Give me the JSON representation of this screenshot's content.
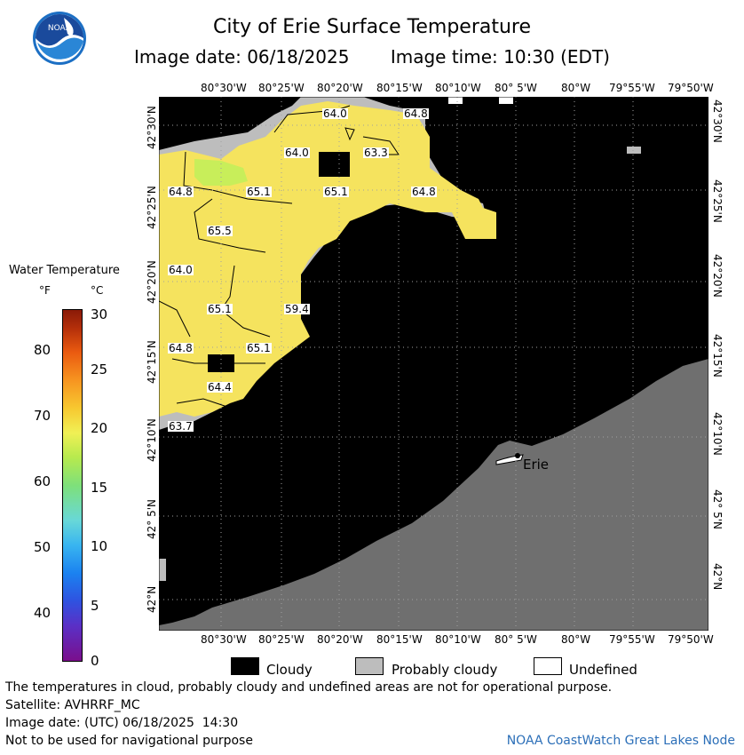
{
  "header": {
    "title": "City of Erie Surface Temperature",
    "image_date": "Image date: 06/18/2025",
    "image_time": "Image time: 10:30 (EDT)",
    "logo_text": "NOAA"
  },
  "map": {
    "x_ticks": [
      "80°30'W",
      "80°25'W",
      "80°20'W",
      "80°15'W",
      "80°10'W",
      "80° 5'W",
      "80°W",
      "79°55'W",
      "79°50'W"
    ],
    "y_ticks": [
      "42°30'N",
      "42°25'N",
      "42°20'N",
      "42°15'N",
      "42°10'N",
      "42° 5'N",
      "42°N"
    ],
    "city_label": "Erie",
    "contour_labels": [
      "64.0",
      "64.8",
      "64.0",
      "63.3",
      "64.8",
      "65.1",
      "65.1",
      "64.8",
      "65.5",
      "64.0",
      "65.1",
      "59.4",
      "64.8",
      "65.1",
      "64.4",
      "63.7"
    ],
    "colors": {
      "cloud": "#000000",
      "land": "#6f6f6f",
      "probably_cloudy": "#bdbdbd",
      "water_warm": "#f7e65c",
      "water_green": "#c9ef5a"
    }
  },
  "colorbar": {
    "title": "Water Temperature",
    "unit_f": "°F",
    "unit_c": "°C",
    "f_ticks": [
      "80",
      "70",
      "60",
      "50",
      "40"
    ],
    "c_ticks": [
      "30",
      "25",
      "20",
      "15",
      "10",
      "5",
      "0"
    ]
  },
  "legend": {
    "cloudy": "Cloudy",
    "probably_cloudy": "Probably cloudy",
    "undefined": "Undefined"
  },
  "footer": {
    "disclaimer": "The temperatures in cloud, probably cloudy and undefined areas are not for operational purpose.",
    "satellite": "Satellite: AVHRRF_MC",
    "utc_date": "Image date: (UTC) 06/18/2025  14:30",
    "nav_warning": "Not to be used for navigational purpose",
    "credit": "NOAA CoastWatch Great Lakes Node"
  }
}
